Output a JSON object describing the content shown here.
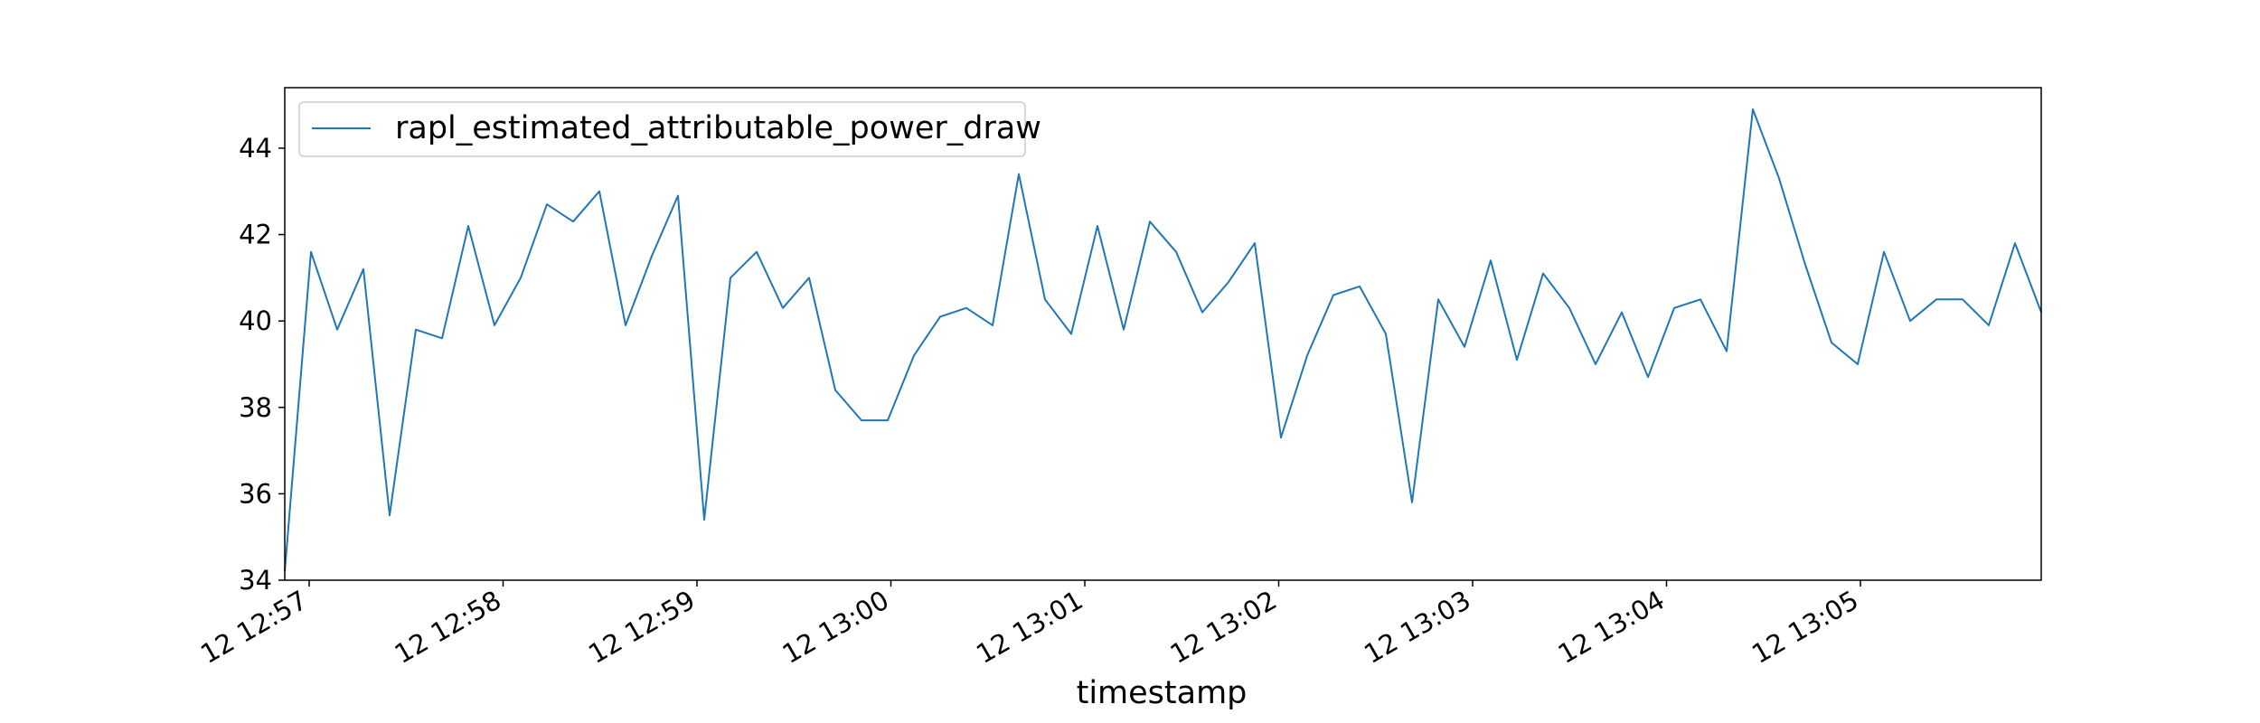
{
  "chart_data": {
    "type": "line",
    "xlabel": "timestamp",
    "ylabel": "",
    "ylim": [
      34,
      45.4
    ],
    "xlim": [
      "12:56:57",
      "12:58:08"
    ],
    "yticks": [
      34,
      36,
      38,
      40,
      42,
      44
    ],
    "ytick_labels": [
      "34",
      "36",
      "38",
      "40",
      "42",
      "44"
    ],
    "xtick_labels": [
      "12 12:57",
      "12 12:58",
      "12 12:59",
      "12 13:00",
      "12 13:01",
      "12 13:02",
      "12 13:03",
      "12 13:04",
      "12 13:05"
    ],
    "grid": false,
    "legend_position": "top-left",
    "series": [
      {
        "name": "rapl_estimated_attributable_power_draw",
        "color": "#1f77b4",
        "values": [
          34.2,
          41.6,
          39.8,
          41.2,
          35.5,
          39.8,
          39.6,
          42.2,
          39.9,
          41.0,
          42.7,
          42.3,
          43.0,
          39.9,
          41.5,
          42.9,
          35.4,
          41.0,
          41.6,
          40.3,
          41.0,
          38.4,
          37.7,
          37.7,
          39.2,
          40.1,
          40.3,
          39.9,
          43.4,
          40.5,
          39.7,
          42.2,
          39.8,
          42.3,
          41.6,
          40.2,
          40.9,
          41.8,
          37.3,
          39.2,
          40.6,
          40.8,
          39.7,
          35.8,
          40.5,
          39.4,
          41.4,
          39.1,
          41.1,
          40.3,
          39.0,
          40.2,
          38.7,
          40.3,
          40.5,
          39.3,
          44.9,
          43.3,
          41.3,
          39.5,
          39.0,
          41.6,
          40.0,
          40.5,
          40.5,
          39.9,
          41.8,
          40.2
        ]
      }
    ]
  }
}
